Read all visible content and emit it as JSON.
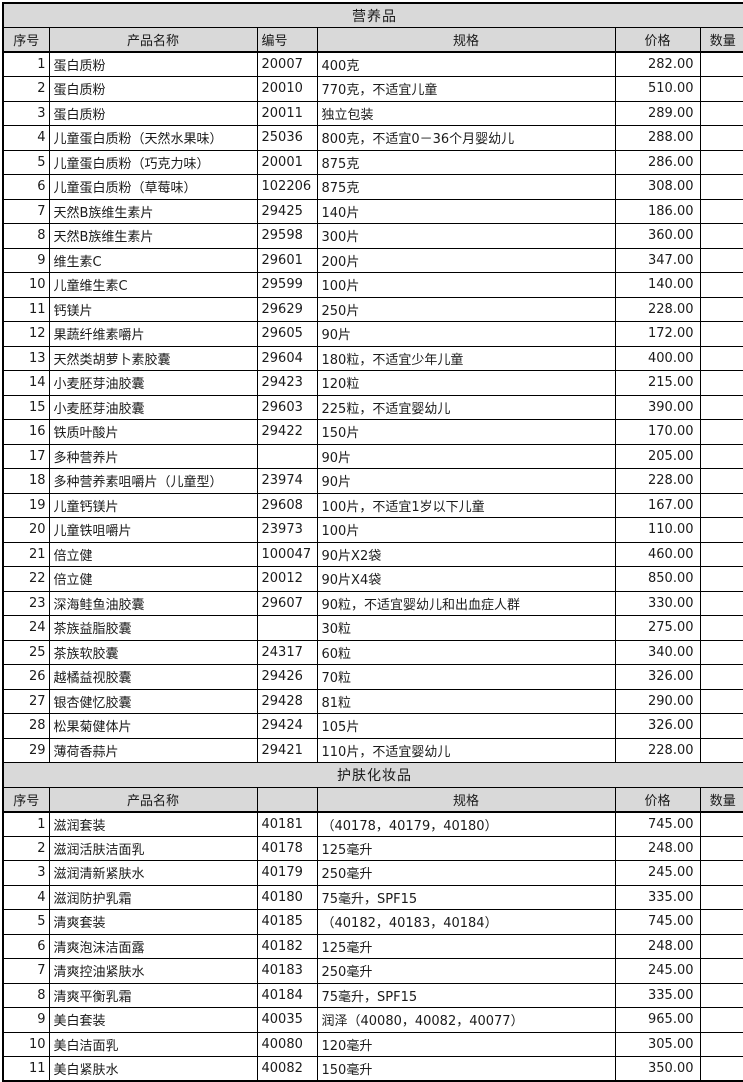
{
  "colors": {
    "header_bg": "#d9d9d9",
    "border": "#000000",
    "page_bg": "#ffffff",
    "text": "#1a1a1a"
  },
  "sections": [
    {
      "title": "营养品",
      "header": {
        "index": "序号",
        "name": "产品名称",
        "code": "编号",
        "spec": "规格",
        "price": "价格",
        "qty": "数量"
      },
      "rows": [
        {
          "index": "1",
          "name": "蛋白质粉",
          "code": "20007",
          "spec": "400克",
          "price": "282.00",
          "qty": ""
        },
        {
          "index": "2",
          "name": "蛋白质粉",
          "code": "20010",
          "spec": "770克，不适宜儿童",
          "price": "510.00",
          "qty": ""
        },
        {
          "index": "3",
          "name": "蛋白质粉",
          "code": "20011",
          "spec": "独立包装",
          "price": "289.00",
          "qty": ""
        },
        {
          "index": "4",
          "name": "儿童蛋白质粉（天然水果味）",
          "code": "25036",
          "spec": "800克，不适宜0－36个月婴幼儿",
          "price": "288.00",
          "qty": ""
        },
        {
          "index": "5",
          "name": "儿童蛋白质粉（巧克力味）",
          "code": "20001",
          "spec": "875克",
          "price": "286.00",
          "qty": ""
        },
        {
          "index": "6",
          "name": "儿童蛋白质粉（草莓味）",
          "code": "102206",
          "spec": "875克",
          "price": "308.00",
          "qty": ""
        },
        {
          "index": "7",
          "name": "天然B族维生素片",
          "code": "29425",
          "spec": "140片",
          "price": "186.00",
          "qty": ""
        },
        {
          "index": "8",
          "name": "天然B族维生素片",
          "code": "29598",
          "spec": "300片",
          "price": "360.00",
          "qty": ""
        },
        {
          "index": "9",
          "name": "维生素C",
          "code": "29601",
          "spec": "200片",
          "price": "347.00",
          "qty": ""
        },
        {
          "index": "10",
          "name": "儿童维生素C",
          "code": "29599",
          "spec": "100片",
          "price": "140.00",
          "qty": ""
        },
        {
          "index": "11",
          "name": "钙镁片",
          "code": "29629",
          "spec": "250片",
          "price": "228.00",
          "qty": ""
        },
        {
          "index": "12",
          "name": "果蔬纤维素嚼片",
          "code": "29605",
          "spec": "90片",
          "price": "172.00",
          "qty": ""
        },
        {
          "index": "13",
          "name": "天然类胡萝卜素胶囊",
          "code": "29604",
          "spec": "180粒，不适宜少年儿童",
          "price": "400.00",
          "qty": ""
        },
        {
          "index": "14",
          "name": "小麦胚芽油胶囊",
          "code": "29423",
          "spec": "120粒",
          "price": "215.00",
          "qty": ""
        },
        {
          "index": "15",
          "name": "小麦胚芽油胶囊",
          "code": "29603",
          "spec": "225粒，不适宜婴幼儿",
          "price": "390.00",
          "qty": ""
        },
        {
          "index": "16",
          "name": "铁质叶酸片",
          "code": "29422",
          "spec": "150片",
          "price": "170.00",
          "qty": ""
        },
        {
          "index": "17",
          "name": "多种营养片",
          "code": "",
          "spec": "90片",
          "price": "205.00",
          "qty": ""
        },
        {
          "index": "18",
          "name": "多种营养素咀嚼片（儿童型）",
          "code": "23974",
          "spec": "90片",
          "price": "228.00",
          "qty": ""
        },
        {
          "index": "19",
          "name": "儿童钙镁片",
          "code": "29608",
          "spec": "100片，不适宜1岁以下儿童",
          "price": "167.00",
          "qty": ""
        },
        {
          "index": "20",
          "name": "儿童铁咀嚼片",
          "code": "23973",
          "spec": "100片",
          "price": "110.00",
          "qty": ""
        },
        {
          "index": "21",
          "name": "倍立健",
          "code": "100047",
          "spec": "90片X2袋",
          "price": "460.00",
          "qty": ""
        },
        {
          "index": "22",
          "name": "倍立健",
          "code": "20012",
          "spec": "90片X4袋",
          "price": "850.00",
          "qty": ""
        },
        {
          "index": "23",
          "name": "深海鲑鱼油胶囊",
          "code": "29607",
          "spec": "90粒，不适宜婴幼儿和出血症人群",
          "price": "330.00",
          "qty": ""
        },
        {
          "index": "24",
          "name": "茶族益脂胶囊",
          "code": "",
          "spec": "30粒",
          "price": "275.00",
          "qty": ""
        },
        {
          "index": "25",
          "name": "茶族软胶囊",
          "code": "24317",
          "spec": "60粒",
          "price": "340.00",
          "qty": ""
        },
        {
          "index": "26",
          "name": "越橘益视胶囊",
          "code": "29426",
          "spec": "70粒",
          "price": "326.00",
          "qty": ""
        },
        {
          "index": "27",
          "name": "银杏健忆胶囊",
          "code": "29428",
          "spec": "81粒",
          "price": "290.00",
          "qty": ""
        },
        {
          "index": "28",
          "name": "松果菊健体片",
          "code": "29424",
          "spec": "105片",
          "price": "326.00",
          "qty": ""
        },
        {
          "index": "29",
          "name": "薄荷香蒜片",
          "code": "29421",
          "spec": "110片，不适宜婴幼儿",
          "price": "228.00",
          "qty": ""
        }
      ]
    },
    {
      "title": "护肤化妆品",
      "header": {
        "index": "序号",
        "name": "产品名称",
        "code": "",
        "spec": "规格",
        "price": "价格",
        "qty": "数量"
      },
      "rows": [
        {
          "index": "1",
          "name": "滋润套装",
          "code": "40181",
          "spec": "（40178，40179，40180）",
          "price": "745.00",
          "qty": ""
        },
        {
          "index": "2",
          "name": "滋润活肤洁面乳",
          "code": "40178",
          "spec": "125毫升",
          "price": "248.00",
          "qty": ""
        },
        {
          "index": "3",
          "name": "滋润清新紧肤水",
          "code": "40179",
          "spec": "250毫升",
          "price": "245.00",
          "qty": ""
        },
        {
          "index": "4",
          "name": "滋润防护乳霜",
          "code": "40180",
          "spec": "75毫升，SPF15",
          "price": "335.00",
          "qty": ""
        },
        {
          "index": "5",
          "name": "清爽套装",
          "code": "40185",
          "spec": "（40182，40183，40184）",
          "price": "745.00",
          "qty": ""
        },
        {
          "index": "6",
          "name": "清爽泡沫洁面露",
          "code": "40182",
          "spec": "125毫升",
          "price": "248.00",
          "qty": ""
        },
        {
          "index": "7",
          "name": "清爽控油紧肤水",
          "code": "40183",
          "spec": "250毫升",
          "price": "245.00",
          "qty": ""
        },
        {
          "index": "8",
          "name": "清爽平衡乳霜",
          "code": "40184",
          "spec": "75毫升，SPF15",
          "price": "335.00",
          "qty": ""
        },
        {
          "index": "9",
          "name": "美白套装",
          "code": "40035",
          "spec": "润泽（40080，40082，40077）",
          "price": "965.00",
          "qty": ""
        },
        {
          "index": "10",
          "name": "美白洁面乳",
          "code": "40080",
          "spec": "120毫升",
          "price": "305.00",
          "qty": ""
        },
        {
          "index": "11",
          "name": "美白紧肤水",
          "code": "40082",
          "spec": "150毫升",
          "price": "350.00",
          "qty": ""
        }
      ]
    }
  ]
}
